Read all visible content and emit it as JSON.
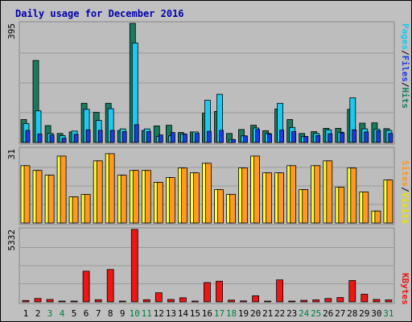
{
  "chart_data": {
    "type": "bar",
    "title": "Daily usage for December 2016",
    "colors": {
      "title": "#0000aa",
      "hits": "#1a7a5e",
      "files": "#1ec8ee",
      "pages": "#1e3ae0",
      "visits": "#ffff33",
      "sites": "#ff9922",
      "kbytes": "#ee1515",
      "weekend_label": "#008040",
      "weekday_label": "#000000"
    },
    "panels": {
      "top": {
        "max_label": "395",
        "ylim": [
          0,
          395
        ],
        "legend": [
          "Pages",
          "/",
          "Files",
          "/",
          "Hits"
        ]
      },
      "middle": {
        "max_label": "31",
        "ylim": [
          0,
          31
        ],
        "legend": [
          "Sites",
          "/",
          "Visits"
        ]
      },
      "bottom": {
        "max_label": "5332",
        "ylim": [
          0,
          5332
        ],
        "legend": [
          "KBytes"
        ]
      }
    },
    "categories": [
      "1",
      "2",
      "3",
      "4",
      "5",
      "6",
      "7",
      "8",
      "9",
      "10",
      "11",
      "12",
      "13",
      "14",
      "15",
      "16",
      "17",
      "18",
      "19",
      "20",
      "21",
      "22",
      "23",
      "24",
      "25",
      "26",
      "27",
      "28",
      "29",
      "30",
      "31"
    ],
    "weekend_days": [
      3,
      4,
      10,
      11,
      17,
      18,
      24,
      25,
      31
    ],
    "series": [
      {
        "name": "Hits",
        "values": [
          76,
          272,
          56,
          30,
          35,
          130,
          100,
          130,
          40,
          395,
          40,
          55,
          57,
          33,
          35,
          97,
          103,
          30,
          43,
          57,
          39,
          111,
          76,
          30,
          36,
          47,
          47,
          110,
          64,
          65,
          46
        ]
      },
      {
        "name": "Files",
        "values": [
          63,
          105,
          30,
          23,
          38,
          110,
          73,
          112,
          45,
          330,
          45,
          20,
          22,
          28,
          35,
          140,
          160,
          10,
          22,
          48,
          30,
          130,
          50,
          20,
          30,
          42,
          34,
          148,
          45,
          44,
          40
        ]
      },
      {
        "name": "Pages",
        "values": [
          40,
          28,
          25,
          14,
          27,
          42,
          40,
          40,
          36,
          59,
          36,
          25,
          33,
          28,
          30,
          37,
          40,
          10,
          22,
          43,
          28,
          41,
          36,
          20,
          23,
          29,
          32,
          42,
          35,
          39,
          30
        ]
      },
      {
        "name": "Visits",
        "values": [
          20,
          22,
          19,
          11,
          8,
          19,
          21,
          20,
          18,
          20,
          19,
          12,
          15,
          13,
          18,
          26,
          14,
          9,
          11,
          9,
          13,
          10,
          13,
          11,
          11,
          11,
          14,
          11,
          9,
          9,
          9
        ]
      },
      {
        "name": "Sites",
        "values": [
          24,
          22,
          20,
          28,
          11,
          12,
          26,
          29,
          20,
          22,
          22,
          17,
          19,
          23,
          21,
          25,
          14,
          12,
          23,
          28,
          21,
          21,
          24,
          14,
          24,
          26,
          15,
          23,
          13,
          5,
          18
        ]
      },
      {
        "name": "KBytes",
        "values": [
          100,
          250,
          180,
          20,
          20,
          2260,
          160,
          2380,
          55,
          5332,
          160,
          670,
          180,
          300,
          60,
          1420,
          1520,
          130,
          70,
          450,
          30,
          1620,
          40,
          110,
          150,
          250,
          320,
          1570,
          560,
          180,
          140
        ]
      }
    ]
  }
}
